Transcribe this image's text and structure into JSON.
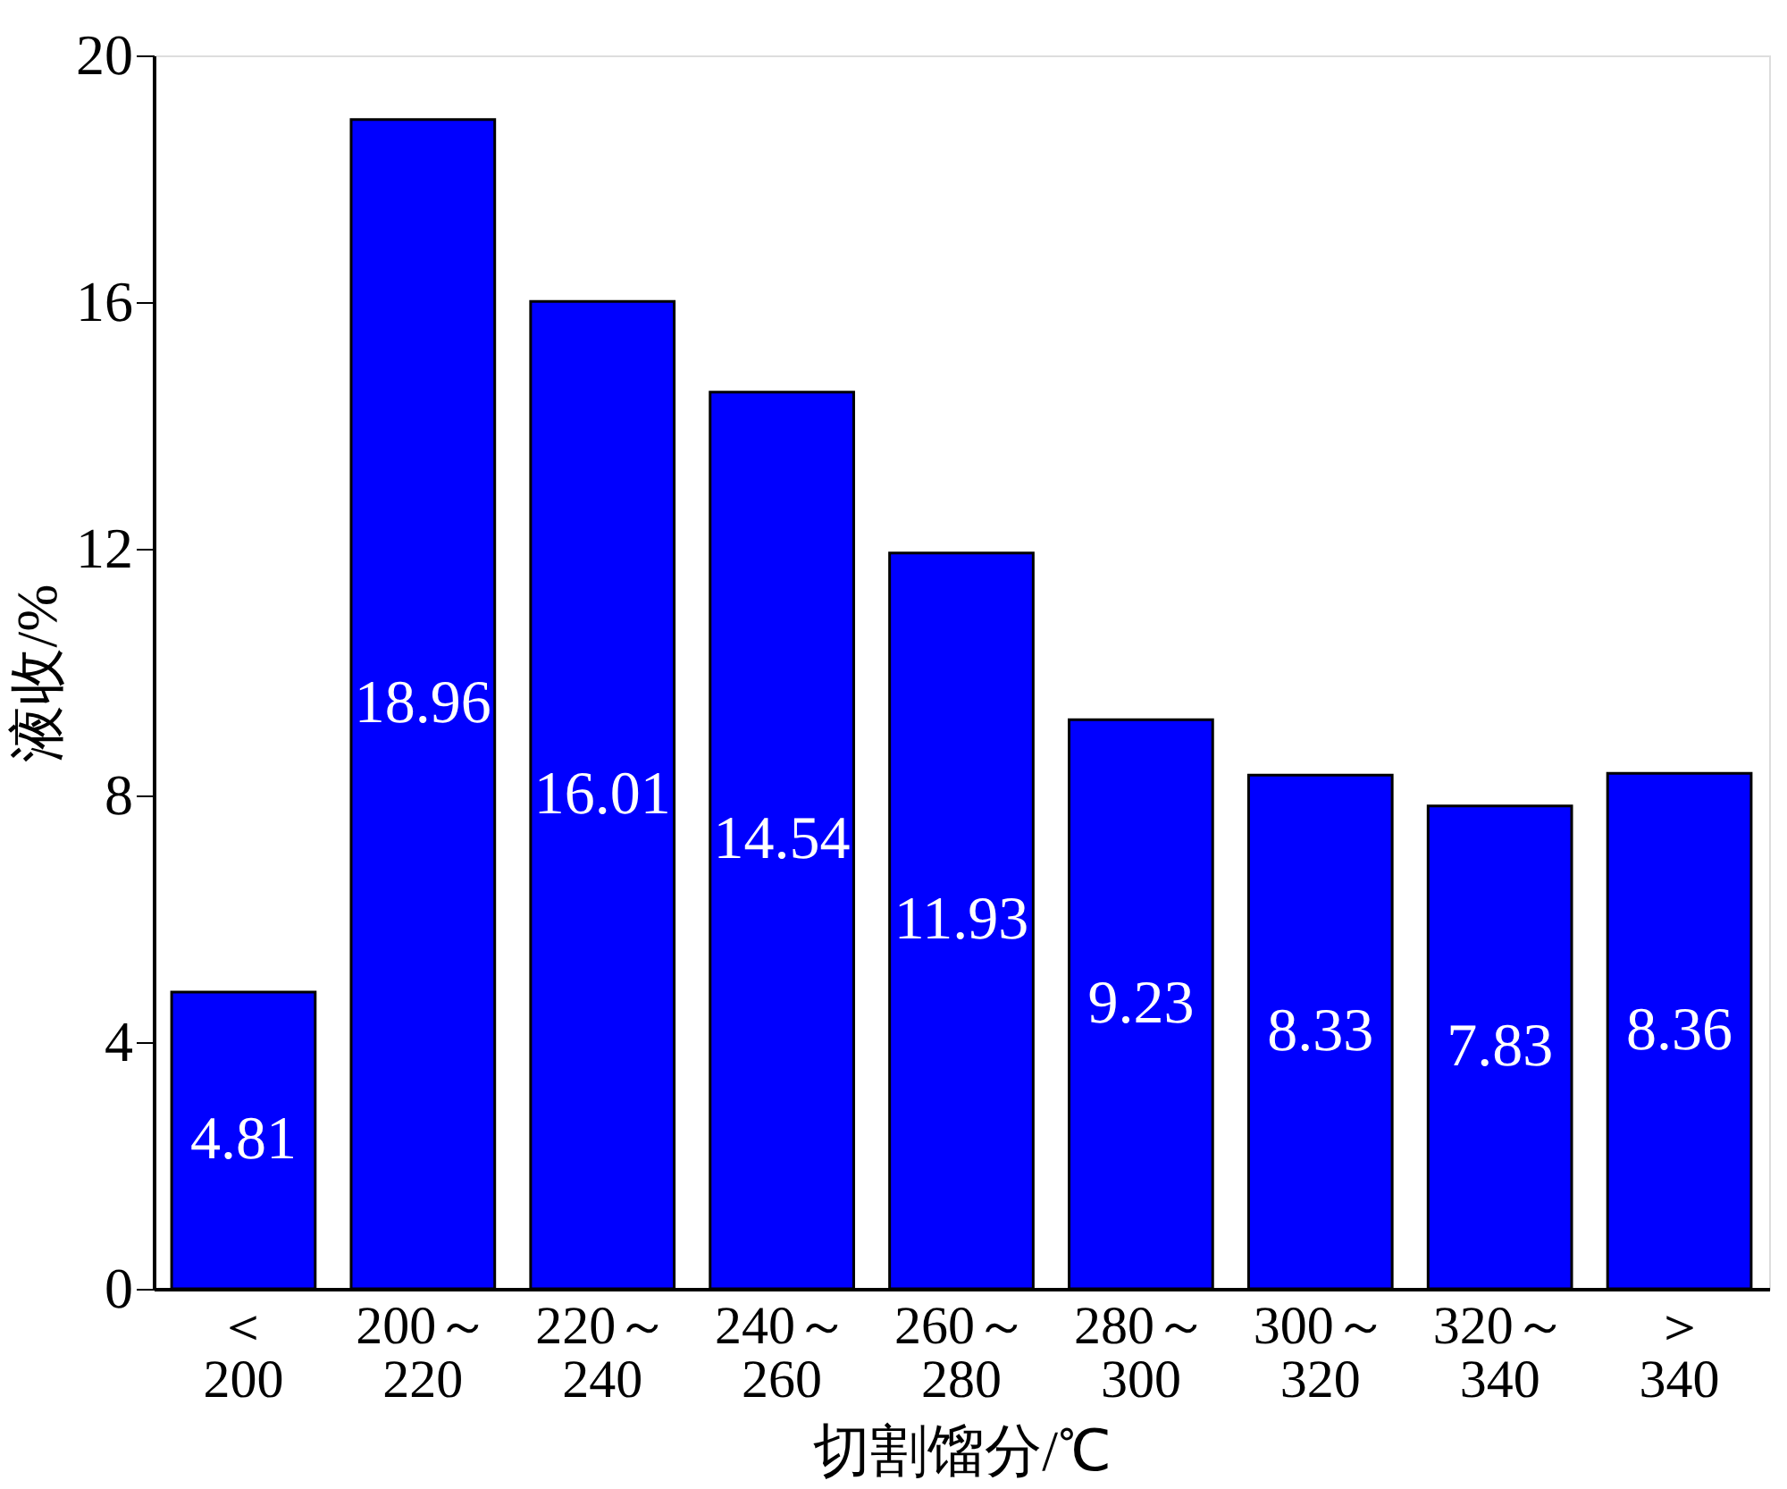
{
  "chart_data": {
    "type": "bar",
    "xlabel": "切割馏分/℃",
    "ylabel": "液收/%",
    "categories": [
      "＜\n200",
      "200～\n220",
      "220～\n240",
      "240～\n260",
      "260～\n280",
      "280～\n300",
      "300～\n320",
      "320～\n340",
      "＞\n340"
    ],
    "values": [
      4.81,
      18.96,
      16.01,
      14.54,
      11.93,
      9.23,
      8.33,
      7.83,
      8.36
    ],
    "color": "#0000ff",
    "ylim": [
      0,
      20
    ],
    "yticks": [
      0,
      4,
      8,
      12,
      16,
      20
    ],
    "grid": false,
    "data_labels": true
  }
}
